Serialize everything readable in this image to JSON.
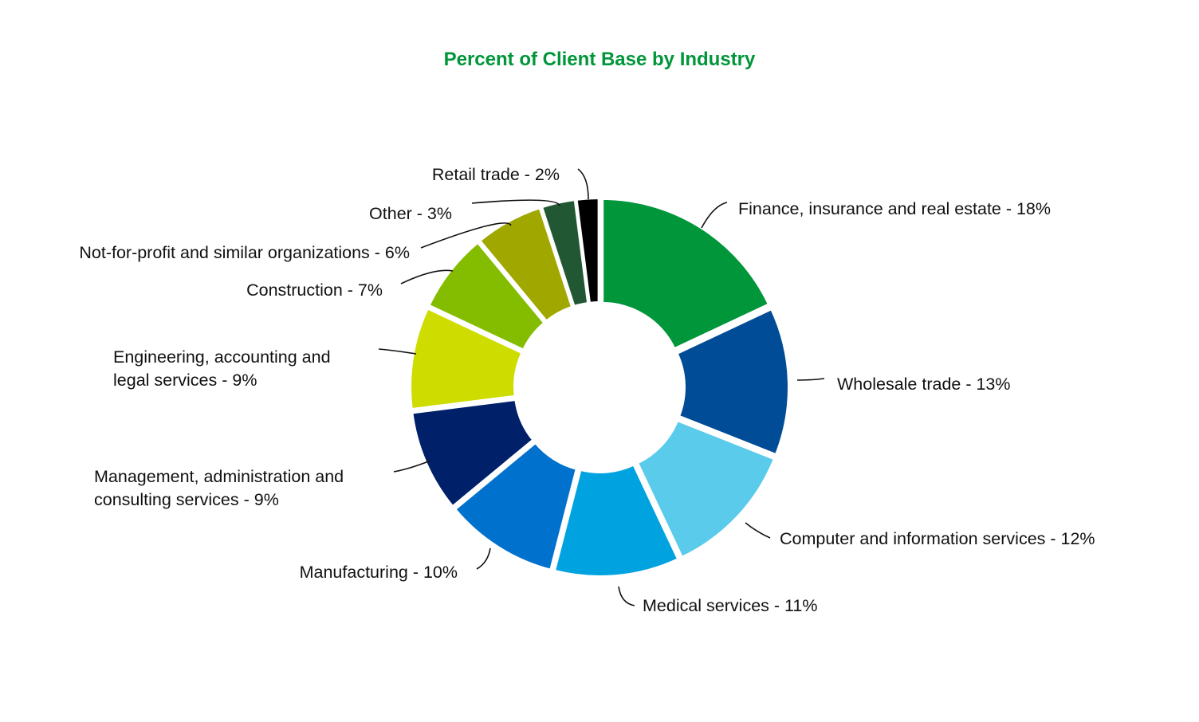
{
  "chart_data": {
    "type": "pie",
    "variant": "donut",
    "title": "Percent of Client Base by Industry",
    "title_color": "#009639",
    "slices": [
      {
        "name": "Finance, insurance and real estate",
        "value": 18,
        "color": "#009639",
        "label_lines": [
          "Finance, insurance and real estate - 18%"
        ]
      },
      {
        "name": "Wholesale trade",
        "value": 13,
        "color": "#004c97",
        "label_lines": [
          "Wholesale trade - 13%"
        ]
      },
      {
        "name": "Computer and information services",
        "value": 12,
        "color": "#5bcbeb",
        "label_lines": [
          "Computer and information services - 12%"
        ]
      },
      {
        "name": "Medical services",
        "value": 11,
        "color": "#00a3e0",
        "label_lines": [
          "Medical services - 11%"
        ]
      },
      {
        "name": "Manufacturing",
        "value": 10,
        "color": "#0072ce",
        "label_lines": [
          "Manufacturing - 10%"
        ]
      },
      {
        "name": "Management, administration and consulting services",
        "value": 9,
        "color": "#002169",
        "label_lines": [
          "Management, administration and",
          "consulting services - 9%"
        ]
      },
      {
        "name": "Engineering, accounting and legal services",
        "value": 9,
        "color": "#cedc00",
        "label_lines": [
          "Engineering, accounting and",
          "legal services - 9%"
        ]
      },
      {
        "name": "Construction",
        "value": 7,
        "color": "#84bd00",
        "label_lines": [
          "Construction - 7%"
        ]
      },
      {
        "name": "Not-for-profit and similar organizations",
        "value": 6,
        "color": "#a0a800",
        "label_lines": [
          "Not-for-profit and similar organizations - 6%"
        ]
      },
      {
        "name": "Other",
        "value": 3,
        "color": "#215732",
        "label_lines": [
          "Other - 3%"
        ]
      },
      {
        "name": "Retail trade",
        "value": 2,
        "color": "#000000",
        "label_lines": [
          "Retail trade - 2%"
        ]
      }
    ]
  }
}
